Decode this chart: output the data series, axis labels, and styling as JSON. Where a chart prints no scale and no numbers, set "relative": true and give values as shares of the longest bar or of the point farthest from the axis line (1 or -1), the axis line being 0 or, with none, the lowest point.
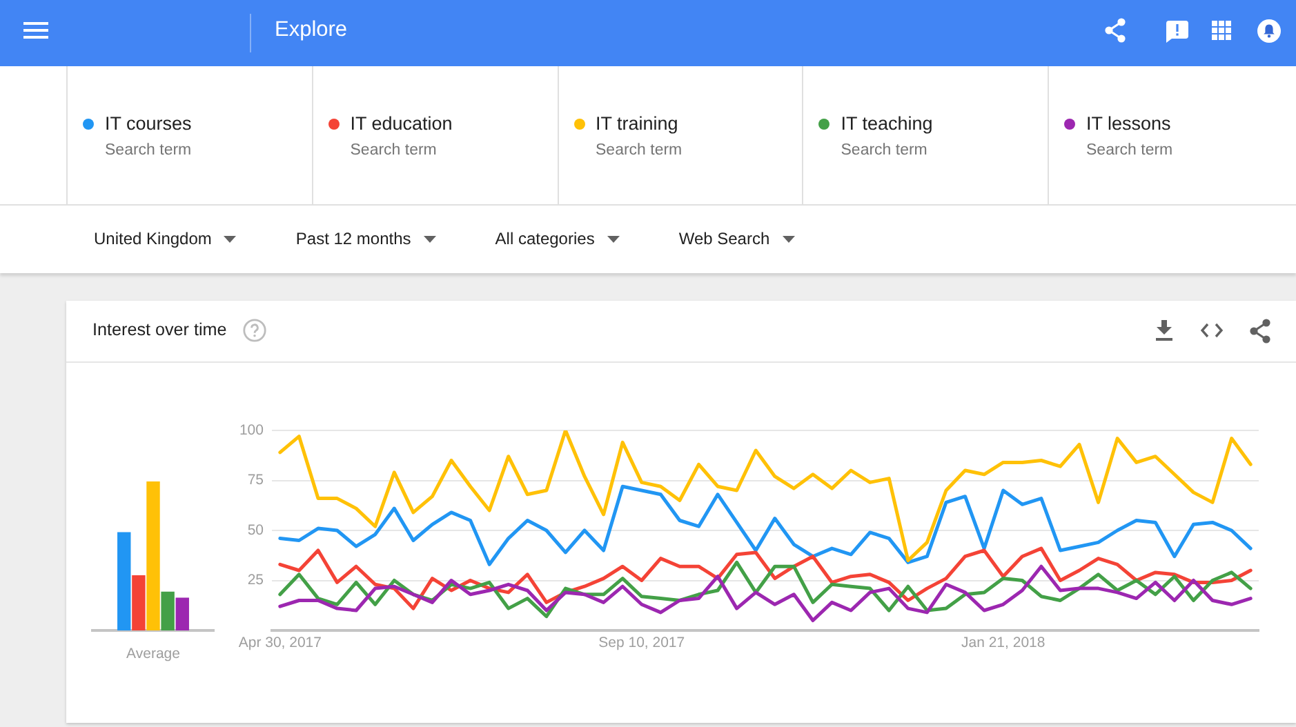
{
  "chart_data": [
    {
      "type": "line",
      "title": "Interest over time",
      "legend": "top",
      "grid": "y",
      "annotations": [
        "Explore",
        "Search term",
        "Search term",
        "Search term",
        "Search term",
        "Search term",
        "United Kingdom",
        "Past 12 months",
        "All categories",
        "Web Search"
      ],
      "x": [
        "2017-04-30",
        "2017-05-07",
        "2017-05-14",
        "2017-05-21",
        "2017-05-28",
        "2017-06-04",
        "2017-06-11",
        "2017-06-18",
        "2017-06-25",
        "2017-07-02",
        "2017-07-09",
        "2017-07-16",
        "2017-07-23",
        "2017-07-30",
        "2017-08-06",
        "2017-08-13",
        "2017-08-20",
        "2017-08-27",
        "2017-09-03",
        "2017-09-10",
        "2017-09-17",
        "2017-09-24",
        "2017-10-01",
        "2017-10-08",
        "2017-10-15",
        "2017-10-22",
        "2017-10-29",
        "2017-11-05",
        "2017-11-12",
        "2017-11-19",
        "2017-11-26",
        "2017-12-03",
        "2017-12-10",
        "2017-12-17",
        "2017-12-24",
        "2017-12-31",
        "2018-01-07",
        "2018-01-14",
        "2018-01-21",
        "2018-01-28",
        "2018-02-04",
        "2018-02-11",
        "2018-02-18",
        "2018-02-25",
        "2018-03-04",
        "2018-03-11",
        "2018-03-18",
        "2018-03-25",
        "2018-04-01",
        "2018-04-08",
        "2018-04-15",
        "2018-04-22"
      ],
      "xlim": [
        "2017-04-27",
        "2018-04-25"
      ],
      "xticks": [
        {
          "value": "2017-04-30",
          "label": "Apr 30, 2017"
        },
        {
          "value": "2017-09-10",
          "label": "Sep 10, 2017"
        },
        {
          "value": "2018-01-21",
          "label": "Jan 21, 2018"
        }
      ],
      "ylim": [
        0,
        100
      ],
      "yticks": [
        25,
        50,
        75,
        100
      ],
      "series": [
        {
          "name": "IT courses",
          "color": "#2196f3",
          "values": [
            46,
            45,
            51,
            50,
            42,
            48,
            61,
            45,
            53,
            59,
            55,
            33,
            46,
            55,
            50,
            39,
            50,
            40,
            72,
            70,
            68,
            55,
            52,
            68,
            54,
            40,
            56,
            43,
            37,
            41,
            38,
            49,
            46,
            34,
            37,
            64,
            67,
            41,
            70,
            63,
            66,
            40,
            42,
            44,
            50,
            55,
            54,
            37,
            53,
            54,
            50,
            41
          ]
        },
        {
          "name": "IT education",
          "color": "#f44336",
          "values": [
            33,
            30,
            40,
            24,
            32,
            23,
            21,
            11,
            26,
            20,
            25,
            21,
            19,
            28,
            14,
            19,
            22,
            26,
            32,
            25,
            36,
            32,
            32,
            26,
            38,
            39,
            26,
            32,
            37,
            24,
            27,
            28,
            24,
            15,
            21,
            26,
            37,
            40,
            27,
            37,
            41,
            25,
            30,
            36,
            33,
            25,
            29,
            28,
            24,
            24,
            25,
            30
          ]
        },
        {
          "name": "IT training",
          "color": "#ffc107",
          "values": [
            89,
            97,
            66,
            66,
            61,
            52,
            79,
            59,
            67,
            85,
            72,
            60,
            87,
            68,
            70,
            100,
            77,
            58,
            94,
            74,
            72,
            65,
            83,
            72,
            70,
            90,
            77,
            71,
            78,
            71,
            80,
            74,
            76,
            35,
            44,
            70,
            80,
            78,
            84,
            84,
            85,
            82,
            93,
            64,
            96,
            84,
            87,
            78,
            69,
            64,
            96,
            83
          ]
        },
        {
          "name": "IT teaching",
          "color": "#43a047",
          "values": [
            18,
            28,
            16,
            13,
            24,
            13,
            25,
            18,
            15,
            23,
            21,
            24,
            11,
            16,
            7,
            21,
            18,
            18,
            26,
            17,
            16,
            15,
            18,
            20,
            34,
            19,
            32,
            32,
            14,
            23,
            22,
            21,
            10,
            22,
            10,
            11,
            18,
            19,
            26,
            25,
            17,
            15,
            21,
            28,
            20,
            25,
            18,
            27,
            15,
            25,
            29,
            21
          ]
        },
        {
          "name": "IT lessons",
          "color": "#9c27b0",
          "values": [
            12,
            15,
            15,
            11,
            10,
            21,
            22,
            18,
            14,
            25,
            18,
            20,
            23,
            20,
            10,
            19,
            18,
            14,
            22,
            13,
            9,
            15,
            16,
            27,
            11,
            19,
            13,
            18,
            5,
            14,
            10,
            19,
            21,
            11,
            9,
            23,
            19,
            10,
            13,
            20,
            32,
            20,
            21,
            21,
            19,
            16,
            24,
            15,
            25,
            15,
            13,
            16
          ]
        }
      ]
    },
    {
      "type": "bar",
      "relative": true,
      "categories": [
        "Average"
      ],
      "series": [
        {
          "color": "#2196f3",
          "values": [
            0.66
          ]
        },
        {
          "color": "#f44336",
          "values": [
            0.37
          ]
        },
        {
          "color": "#ffc107",
          "values": [
            1
          ]
        },
        {
          "color": "#43a047",
          "values": [
            0.26
          ]
        },
        {
          "color": "#9c27b0",
          "values": [
            0.22
          ]
        }
      ]
    }
  ]
}
